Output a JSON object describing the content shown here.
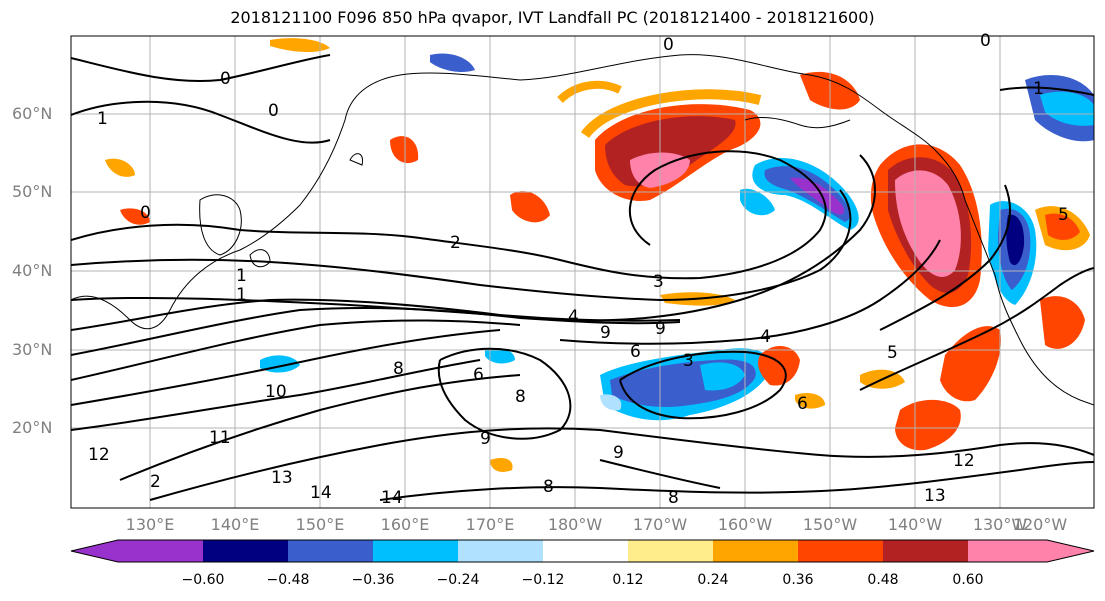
{
  "title": "2018121100 F096 850 hPa qvapor, IVT Landfall PC (2018121400 - 2018121600)",
  "lat_labels": [
    "60°N",
    "50°N",
    "40°N",
    "30°N",
    "20°N"
  ],
  "lon_labels": [
    "130°E",
    "140°E",
    "150°E",
    "160°E",
    "170°E",
    "180°W",
    "170°W",
    "160°W",
    "150°W",
    "140°W",
    "130°W",
    "120°W"
  ],
  "colorbar": {
    "ticks": [
      "−0.60",
      "−0.48",
      "−0.36",
      "−0.24",
      "−0.12",
      "0.12",
      "0.24",
      "0.36",
      "0.48",
      "0.60"
    ],
    "colors": [
      "#9932cc",
      "#000080",
      "#3a5fcd",
      "#00bfff",
      "#b0e2ff",
      "#ffffff",
      "#ffec8b",
      "#ffa500",
      "#ff4500",
      "#b22222",
      "#ff82ab"
    ]
  },
  "contour_labels": [
    "0",
    "0",
    "0",
    "0",
    "1",
    "1",
    "1",
    "2",
    "3",
    "4",
    "4",
    "5",
    "5",
    "6",
    "6",
    "8",
    "8",
    "8",
    "9",
    "9",
    "9",
    "9",
    "10",
    "11",
    "12",
    "12",
    "13",
    "13",
    "14",
    "14",
    "6",
    "8",
    "2",
    "3",
    "1",
    "0"
  ]
}
